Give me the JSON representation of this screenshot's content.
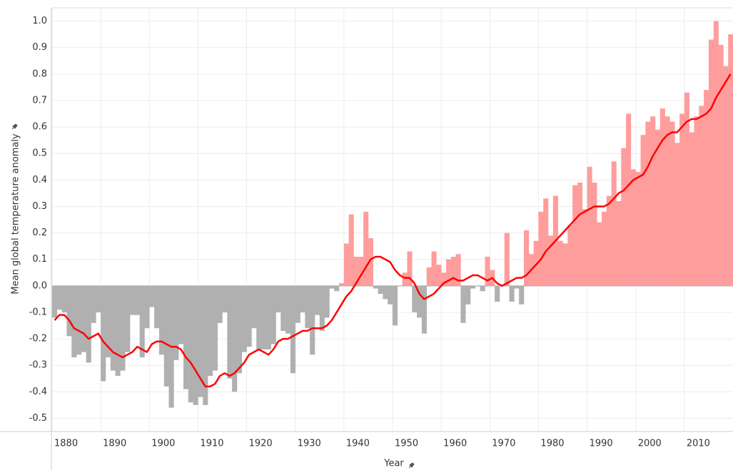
{
  "chart_data": {
    "type": "bar_line",
    "x_label": "Year",
    "y_label": "Mean global temperature anomaly",
    "x": [
      1880,
      1881,
      1882,
      1883,
      1884,
      1885,
      1886,
      1887,
      1888,
      1889,
      1890,
      1891,
      1892,
      1893,
      1894,
      1895,
      1896,
      1897,
      1898,
      1899,
      1900,
      1901,
      1902,
      1903,
      1904,
      1905,
      1906,
      1907,
      1908,
      1909,
      1910,
      1911,
      1912,
      1913,
      1914,
      1915,
      1916,
      1917,
      1918,
      1919,
      1920,
      1921,
      1922,
      1923,
      1924,
      1925,
      1926,
      1927,
      1928,
      1929,
      1930,
      1931,
      1932,
      1933,
      1934,
      1935,
      1936,
      1937,
      1938,
      1939,
      1940,
      1941,
      1942,
      1943,
      1944,
      1945,
      1946,
      1947,
      1948,
      1949,
      1950,
      1951,
      1952,
      1953,
      1954,
      1955,
      1956,
      1957,
      1958,
      1959,
      1960,
      1961,
      1962,
      1963,
      1964,
      1965,
      1966,
      1967,
      1968,
      1969,
      1970,
      1971,
      1972,
      1973,
      1974,
      1975,
      1976,
      1977,
      1978,
      1979,
      1980,
      1981,
      1982,
      1983,
      1984,
      1985,
      1986,
      1987,
      1988,
      1989,
      1990,
      1991,
      1992,
      1993,
      1994,
      1995,
      1996,
      1997,
      1998,
      1999,
      2000,
      2001,
      2002,
      2003,
      2004,
      2005,
      2006,
      2007,
      2008,
      2009,
      2010,
      2011,
      2012,
      2013,
      2014,
      2015,
      2016,
      2017,
      2018,
      2019
    ],
    "bars": {
      "positive_color": "#ff9d9d",
      "negative_color": "#b0b0b0",
      "values": [
        -0.12,
        -0.09,
        -0.1,
        -0.19,
        -0.27,
        -0.26,
        -0.25,
        -0.29,
        -0.14,
        -0.1,
        -0.36,
        -0.27,
        -0.32,
        -0.34,
        -0.32,
        -0.25,
        -0.11,
        -0.11,
        -0.27,
        -0.16,
        -0.08,
        -0.16,
        -0.26,
        -0.38,
        -0.46,
        -0.28,
        -0.22,
        -0.39,
        -0.44,
        -0.45,
        -0.42,
        -0.45,
        -0.34,
        -0.32,
        -0.14,
        -0.1,
        -0.35,
        -0.4,
        -0.33,
        -0.25,
        -0.23,
        -0.16,
        -0.24,
        -0.24,
        -0.24,
        -0.22,
        -0.1,
        -0.17,
        -0.18,
        -0.33,
        -0.14,
        -0.1,
        -0.16,
        -0.26,
        -0.11,
        -0.17,
        -0.12,
        -0.01,
        -0.02,
        0.01,
        0.16,
        0.27,
        0.11,
        0.11,
        0.28,
        0.18,
        -0.01,
        -0.03,
        -0.05,
        -0.07,
        -0.15,
        0.0,
        0.05,
        0.13,
        -0.1,
        -0.12,
        -0.18,
        0.07,
        0.13,
        0.08,
        0.05,
        0.1,
        0.11,
        0.12,
        -0.14,
        -0.07,
        -0.01,
        0.0,
        -0.02,
        0.11,
        0.06,
        -0.06,
        0.0,
        0.2,
        -0.06,
        -0.01,
        -0.07,
        0.21,
        0.12,
        0.17,
        0.28,
        0.33,
        0.19,
        0.34,
        0.17,
        0.16,
        0.23,
        0.38,
        0.39,
        0.29,
        0.45,
        0.39,
        0.24,
        0.28,
        0.34,
        0.47,
        0.32,
        0.52,
        0.65,
        0.44,
        0.43,
        0.57,
        0.62,
        0.64,
        0.59,
        0.67,
        0.64,
        0.62,
        0.54,
        0.65,
        0.73,
        0.58,
        0.64,
        0.68,
        0.74,
        0.93,
        1.0,
        0.91,
        0.83,
        0.95
      ]
    },
    "line": {
      "color": "#ff0000",
      "values": [
        -0.13,
        -0.11,
        -0.11,
        -0.13,
        -0.16,
        -0.17,
        -0.18,
        -0.2,
        -0.19,
        -0.18,
        -0.21,
        -0.23,
        -0.25,
        -0.26,
        -0.27,
        -0.26,
        -0.25,
        -0.23,
        -0.24,
        -0.25,
        -0.22,
        -0.21,
        -0.21,
        -0.22,
        -0.23,
        -0.23,
        -0.24,
        -0.27,
        -0.29,
        -0.32,
        -0.35,
        -0.38,
        -0.38,
        -0.37,
        -0.34,
        -0.33,
        -0.34,
        -0.33,
        -0.31,
        -0.29,
        -0.26,
        -0.25,
        -0.24,
        -0.25,
        -0.26,
        -0.24,
        -0.21,
        -0.2,
        -0.2,
        -0.19,
        -0.18,
        -0.17,
        -0.17,
        -0.16,
        -0.16,
        -0.16,
        -0.15,
        -0.13,
        -0.1,
        -0.07,
        -0.04,
        -0.02,
        0.01,
        0.04,
        0.07,
        0.1,
        0.11,
        0.11,
        0.1,
        0.09,
        0.06,
        0.04,
        0.03,
        0.03,
        0.01,
        -0.03,
        -0.05,
        -0.04,
        -0.03,
        -0.01,
        0.01,
        0.02,
        0.03,
        0.02,
        0.02,
        0.03,
        0.04,
        0.04,
        0.03,
        0.02,
        0.03,
        0.01,
        0.0,
        0.01,
        0.02,
        0.03,
        0.03,
        0.04,
        0.06,
        0.08,
        0.1,
        0.13,
        0.15,
        0.17,
        0.19,
        0.21,
        0.23,
        0.25,
        0.27,
        0.28,
        0.29,
        0.3,
        0.3,
        0.3,
        0.31,
        0.33,
        0.35,
        0.36,
        0.38,
        0.4,
        0.41,
        0.42,
        0.45,
        0.49,
        0.52,
        0.55,
        0.57,
        0.58,
        0.58,
        0.6,
        0.62,
        0.63,
        0.63,
        0.64,
        0.65,
        0.67,
        0.71,
        0.74,
        0.77,
        0.8
      ]
    },
    "xlim": [
      1880,
      2020
    ],
    "xticks": [
      1880,
      1890,
      1900,
      1910,
      1920,
      1930,
      1940,
      1950,
      1960,
      1970,
      1980,
      1990,
      2000,
      2010
    ],
    "ylim": [
      -0.55,
      1.05
    ],
    "yticks": [
      {
        "value": 1,
        "label": "1.0"
      },
      0.9,
      0.8,
      0.7,
      0.6,
      0.5,
      0.4,
      0.3,
      0.2,
      0.1,
      {
        "value": 0,
        "label": "0.0"
      },
      -0.1,
      -0.2,
      -0.3,
      -0.4,
      -0.5
    ],
    "grid": true
  }
}
